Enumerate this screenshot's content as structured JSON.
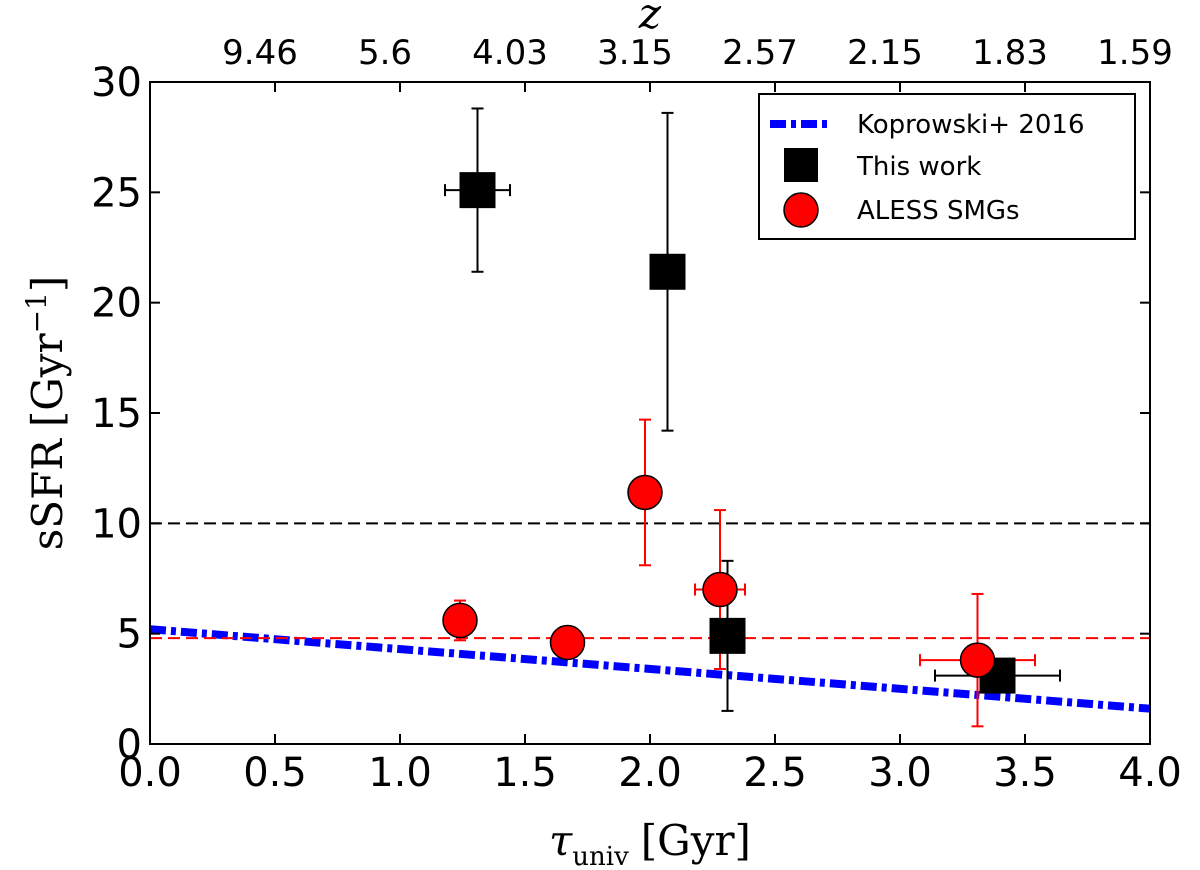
{
  "chart_data": {
    "type": "scatter",
    "xlabel": "τ",
    "xlabel_sub": "univ",
    "xlabel_units": "[Gyr]",
    "ylabel": "sSFR",
    "ylabel_units": "[Gyr",
    "ylabel_exp": "−1",
    "ylabel_close": "]",
    "top_axis_label": "z",
    "xlim": [
      0.0,
      4.0
    ],
    "ylim": [
      0,
      30
    ],
    "x_ticks": [
      0.0,
      0.5,
      1.0,
      1.5,
      2.0,
      2.5,
      3.0,
      3.5,
      4.0
    ],
    "x_tick_labels": [
      "0.0",
      "0.5",
      "1.0",
      "1.5",
      "2.0",
      "2.5",
      "3.0",
      "3.5",
      "4.0"
    ],
    "y_ticks": [
      0,
      5,
      10,
      15,
      20,
      25,
      30
    ],
    "y_tick_labels": [
      "0",
      "5",
      "10",
      "15",
      "20",
      "25",
      "30"
    ],
    "top_ticks": [
      0.5,
      1.0,
      1.5,
      2.0,
      2.5,
      3.0,
      3.5,
      4.0
    ],
    "top_tick_labels": [
      "9.46",
      "5.6",
      "4.03",
      "3.15",
      "2.57",
      "2.15",
      "1.83",
      "1.59"
    ],
    "legend": {
      "position": "upper right",
      "entries": [
        "Koprowski+ 2016",
        "This work",
        "ALESS SMGs"
      ]
    },
    "series": [
      {
        "name": "This work",
        "marker": "square",
        "color": "#000000",
        "points": [
          {
            "x": 1.31,
            "y": 25.1,
            "xerr": 0.13,
            "yerr_low": 3.7,
            "yerr_high": 3.7
          },
          {
            "x": 2.07,
            "y": 21.4,
            "xerr": 0.0,
            "yerr_low": 7.2,
            "yerr_high": 7.2
          },
          {
            "x": 2.31,
            "y": 4.9,
            "xerr": 0.0,
            "yerr_low": 3.4,
            "yerr_high": 3.4
          },
          {
            "x": 3.39,
            "y": 3.1,
            "xerr": 0.25,
            "yerr_low": 0.0,
            "yerr_high": 0.0
          }
        ]
      },
      {
        "name": "ALESS SMGs",
        "marker": "circle",
        "color": "#ff0000",
        "edge_color": "#000000",
        "points": [
          {
            "x": 1.24,
            "y": 5.6,
            "xerr": 0.0,
            "yerr_low": 0.9,
            "yerr_high": 0.9
          },
          {
            "x": 1.67,
            "y": 4.6,
            "xerr": 0.0,
            "yerr_low": 0.0,
            "yerr_high": 0.0
          },
          {
            "x": 1.98,
            "y": 11.4,
            "xerr": 0.0,
            "yerr_low": 3.3,
            "yerr_high": 3.3
          },
          {
            "x": 2.28,
            "y": 7.0,
            "xerr": 0.1,
            "yerr_low": 3.6,
            "yerr_high": 3.6
          },
          {
            "x": 3.31,
            "y": 3.8,
            "xerr": 0.23,
            "yerr_low": 3.0,
            "yerr_high": 3.0
          }
        ]
      }
    ],
    "lines": [
      {
        "name": "Koprowski+ 2016",
        "style": "dashdot",
        "color": "#0000ff",
        "x": [
          0.0,
          4.0
        ],
        "y": [
          5.2,
          1.6
        ]
      },
      {
        "name": "black-reference",
        "style": "dashed",
        "color": "#000000",
        "x": [
          0.0,
          4.0
        ],
        "y": [
          10.0,
          10.0
        ]
      },
      {
        "name": "red-reference",
        "style": "dashed",
        "color": "#ff0000",
        "x": [
          0.0,
          4.0
        ],
        "y": [
          4.8,
          4.8
        ]
      }
    ]
  }
}
